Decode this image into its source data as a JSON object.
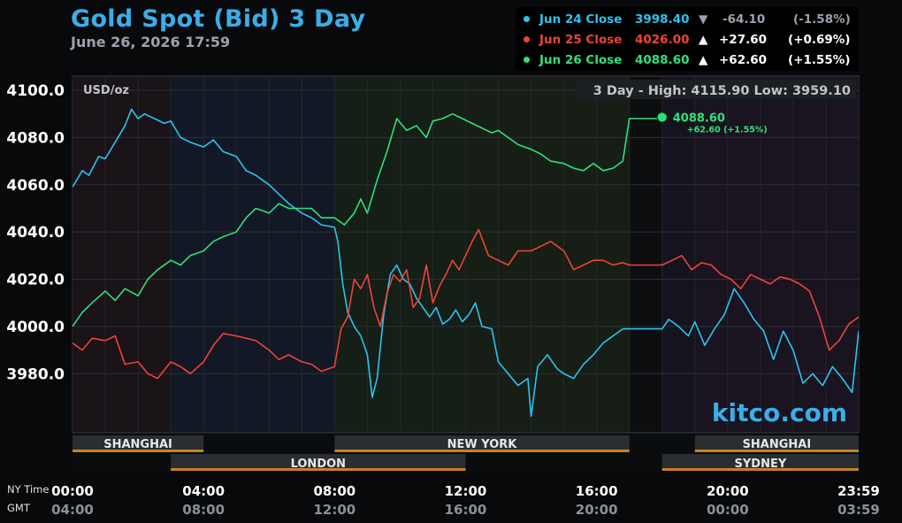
{
  "header": {
    "title": "Gold Spot (Bid) 3 Day",
    "timestamp": "June 26, 2026 17:59"
  },
  "legend": [
    {
      "label": "Jun 24 Close",
      "price": "3998.40",
      "arrow": "▼",
      "change": "-64.10",
      "pct": "(-1.58%)",
      "color": "#29c5f0",
      "change_color": "#9aa3ad"
    },
    {
      "label": "Jun 25 Close",
      "price": "4026.00",
      "arrow": "▲",
      "change": "+27.60",
      "pct": "(+0.69%)",
      "color": "#ee4437",
      "change_color": "#ffffff"
    },
    {
      "label": "Jun 26 Close",
      "price": "4088.60",
      "arrow": "▲",
      "change": "+62.60",
      "pct": "(+1.55%)",
      "color": "#2fe07a",
      "change_color": "#ffffff"
    }
  ],
  "chart_data": {
    "type": "line",
    "unit": "USD/oz",
    "high_low": "3 Day - High: 4115.90  Low: 3959.10",
    "ylim": [
      3955,
      4106
    ],
    "y_ticks": [
      3980,
      4000,
      4020,
      4040,
      4060,
      4080,
      4100
    ],
    "y_tick_labels": [
      "3980.0",
      "4000.0",
      "4020.0",
      "4040.0",
      "4060.0",
      "4080.0",
      "4100.0"
    ],
    "x_range": [
      0,
      24
    ],
    "x_tick_hours": [
      0,
      4,
      8,
      12,
      16,
      20,
      24
    ],
    "x_ticks_ny": [
      "00:00",
      "04:00",
      "08:00",
      "12:00",
      "16:00",
      "20:00",
      "23:59"
    ],
    "x_ticks_gmt": [
      "04:00",
      "08:00",
      "12:00",
      "16:00",
      "20:00",
      "00:00",
      "03:59"
    ],
    "row_labels": {
      "ny": "NY Time",
      "gmt": "GMT"
    },
    "grid": true,
    "last_price": {
      "value": 4088.6,
      "hour": 18,
      "label": "4088.60",
      "change_label": "+62.60 (+1.55%)"
    },
    "watermark": "kitco.com",
    "sessions_top": [
      {
        "name": "SHANGHAI",
        "start": 0,
        "end": 4
      },
      {
        "name": "NEW YORK",
        "start": 8,
        "end": 17
      },
      {
        "name": "SHANGHAI",
        "start": 19,
        "end": 24
      }
    ],
    "sessions_bottom": [
      {
        "name": "LONDON",
        "start": 3,
        "end": 12
      },
      {
        "name": "SYDNEY",
        "start": 18,
        "end": 24
      }
    ],
    "series": [
      {
        "name": "Jun 24",
        "color": "#29c5f0",
        "x": [
          0,
          0.3,
          0.5,
          0.8,
          1,
          1.3,
          1.6,
          1.8,
          2,
          2.2,
          2.5,
          2.8,
          3,
          3.3,
          3.6,
          4,
          4.3,
          4.6,
          5,
          5.3,
          5.6,
          6,
          6.3,
          6.6,
          7,
          7.3,
          7.6,
          8,
          8.1,
          8.25,
          8.4,
          8.6,
          8.8,
          9,
          9.15,
          9.3,
          9.5,
          9.7,
          9.9,
          10.1,
          10.3,
          10.5,
          10.7,
          10.9,
          11.1,
          11.3,
          11.5,
          11.7,
          11.9,
          12.1,
          12.3,
          12.5,
          12.8,
          13,
          13.3,
          13.6,
          13.9,
          14,
          14.2,
          14.5,
          14.8,
          15,
          15.3,
          15.6,
          15.9,
          16.2,
          16.5,
          16.8,
          17,
          18,
          18.2,
          18.5,
          18.8,
          19,
          19.3,
          19.6,
          19.9,
          20.2,
          20.5,
          20.8,
          21.1,
          21.4,
          21.7,
          22,
          22.3,
          22.6,
          22.9,
          23.2,
          23.5,
          23.8,
          24
        ],
        "values": [
          4059,
          4066,
          4064,
          4072,
          4071,
          4078,
          4085,
          4092,
          4088,
          4090,
          4088,
          4086,
          4087,
          4080,
          4078,
          4076,
          4079,
          4074,
          4072,
          4066,
          4064,
          4060,
          4056,
          4052,
          4048,
          4046,
          4043,
          4042,
          4036,
          4018,
          4006,
          4000,
          3996,
          3988,
          3970,
          3978,
          4005,
          4022,
          4026,
          4020,
          4018,
          4012,
          4008,
          4004,
          4008,
          4001,
          4003,
          4007,
          4002,
          4005,
          4010,
          4000,
          3999,
          3985,
          3980,
          3975,
          3978,
          3962,
          3983,
          3988,
          3982,
          3980,
          3978,
          3984,
          3988,
          3993,
          3996,
          3999,
          3999,
          3999,
          4003,
          4000,
          3996,
          4002,
          3992,
          3999,
          4005,
          4016,
          4010,
          4003,
          3998,
          3986,
          3998,
          3990,
          3976,
          3980,
          3975,
          3983,
          3978,
          3972,
          3998
        ],
        "break_after_index": 67
      },
      {
        "name": "Jun 25",
        "color": "#ee4437",
        "x": [
          0,
          0.3,
          0.6,
          1,
          1.3,
          1.6,
          2,
          2.3,
          2.6,
          3,
          3.3,
          3.6,
          4,
          4.3,
          4.6,
          5,
          5.3,
          5.6,
          6,
          6.3,
          6.6,
          7,
          7.3,
          7.6,
          8,
          8.2,
          8.4,
          8.6,
          8.8,
          9,
          9.2,
          9.4,
          9.6,
          9.8,
          10,
          10.2,
          10.4,
          10.6,
          10.8,
          11,
          11.2,
          11.4,
          11.6,
          11.8,
          12,
          12.2,
          12.4,
          12.7,
          13,
          13.3,
          13.6,
          14,
          14.3,
          14.6,
          15,
          15.3,
          15.6,
          15.9,
          16.2,
          16.5,
          16.8,
          17,
          18,
          18.3,
          18.6,
          18.9,
          19.2,
          19.5,
          19.8,
          20.1,
          20.4,
          20.7,
          21,
          21.3,
          21.6,
          21.9,
          22.2,
          22.5,
          22.8,
          23.1,
          23.4,
          23.7,
          24
        ],
        "values": [
          3993,
          3990,
          3995,
          3994,
          3996,
          3984,
          3985,
          3980,
          3978,
          3985,
          3983,
          3980,
          3985,
          3992,
          3997,
          3996,
          3995,
          3994,
          3990,
          3986,
          3988,
          3985,
          3984,
          3981,
          3983,
          3999,
          4004,
          4020,
          4016,
          4022,
          4008,
          4000,
          4014,
          4022,
          4019,
          4024,
          4008,
          4012,
          4026,
          4010,
          4017,
          4022,
          4028,
          4024,
          4030,
          4036,
          4041,
          4030,
          4028,
          4026,
          4032,
          4032,
          4034,
          4036,
          4032,
          4024,
          4026,
          4028,
          4028,
          4026,
          4027,
          4026,
          4026,
          4028,
          4030,
          4024,
          4027,
          4026,
          4022,
          4020,
          4016,
          4022,
          4020,
          4018,
          4021,
          4020,
          4018,
          4015,
          4004,
          3990,
          3994,
          4001,
          4004
        ],
        "break_after_index": 60
      },
      {
        "name": "Jun 26",
        "color": "#2fe07a",
        "x": [
          0,
          0.3,
          0.6,
          1,
          1.3,
          1.6,
          2,
          2.3,
          2.6,
          3,
          3.3,
          3.6,
          4,
          4.3,
          4.6,
          5,
          5.3,
          5.6,
          6,
          6.3,
          6.6,
          7,
          7.3,
          7.6,
          8,
          8.3,
          8.6,
          8.8,
          9,
          9.3,
          9.6,
          9.9,
          10.2,
          10.5,
          10.8,
          11,
          11.3,
          11.6,
          11.9,
          12.2,
          12.5,
          12.8,
          13,
          13.3,
          13.6,
          14,
          14.3,
          14.6,
          15,
          15.3,
          15.6,
          15.9,
          16.2,
          16.5,
          16.8,
          17,
          18
        ],
        "values": [
          4000,
          4006,
          4010,
          4015,
          4011,
          4016,
          4013,
          4020,
          4024,
          4028,
          4026,
          4030,
          4032,
          4036,
          4038,
          4040,
          4046,
          4050,
          4048,
          4052,
          4050,
          4050,
          4050,
          4046,
          4046,
          4043,
          4048,
          4054,
          4048,
          4062,
          4074,
          4088,
          4083,
          4085,
          4080,
          4087,
          4088,
          4090,
          4088,
          4086,
          4084,
          4082,
          4083,
          4080,
          4077,
          4075,
          4073,
          4070,
          4069,
          4067,
          4066,
          4069,
          4066,
          4067,
          4070,
          4088,
          4088
        ],
        "break_after_index": 54
      }
    ]
  }
}
